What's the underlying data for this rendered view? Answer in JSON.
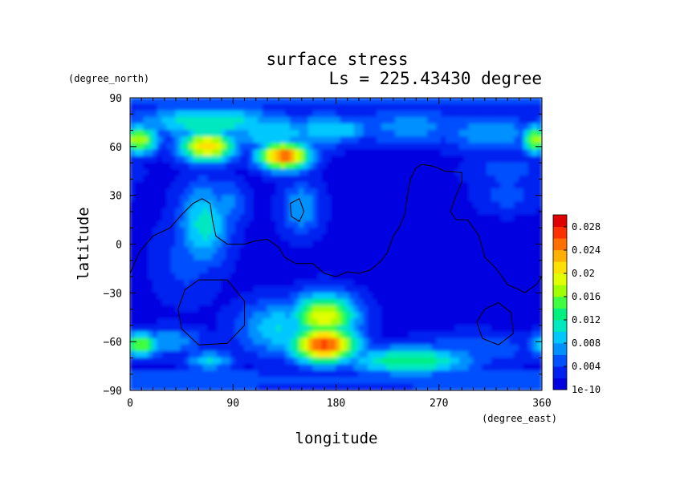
{
  "chart_data": {
    "type": "heatmap",
    "title": "surface stress",
    "subtitle": "Ls = 225.43430 degree",
    "xlabel": "longitude",
    "ylabel": "latitude",
    "xunit": "(degree_east)",
    "yunit": "(degree_north)",
    "xlim": [
      0,
      360
    ],
    "ylim": [
      -90,
      90
    ],
    "xticks": [
      "0",
      "90",
      "180",
      "270",
      "360"
    ],
    "yticks": [
      "90",
      "60",
      "30",
      "0",
      "−30",
      "−60",
      "−90"
    ],
    "colorbar": {
      "labels": [
        "0.028",
        "0.024",
        "0.02",
        "0.016",
        "0.012",
        "0.008",
        "0.004",
        "1e-10"
      ],
      "range": [
        0,
        0.03
      ],
      "colors": [
        "#0000e0",
        "#0020f0",
        "#0050ff",
        "#0090ff",
        "#00c8ff",
        "#00e8c0",
        "#00f080",
        "#40ff40",
        "#a0ff00",
        "#e0ff00",
        "#ffe000",
        "#ffb000",
        "#ff7000",
        "#ff3000",
        "#e00000"
      ]
    },
    "blobs": [
      {
        "lon": 0,
        "lat": 88,
        "value": 0.0045,
        "sx": 400,
        "sy": 4
      },
      {
        "lon": 70,
        "lat": 75,
        "value": 0.012,
        "sx": 45,
        "sy": 7
      },
      {
        "lon": 125,
        "lat": 68,
        "value": 0.01,
        "sx": 30,
        "sy": 8
      },
      {
        "lon": 170,
        "lat": 70,
        "value": 0.01,
        "sx": 20,
        "sy": 7
      },
      {
        "lon": 245,
        "lat": 72,
        "value": 0.007,
        "sx": 40,
        "sy": 8
      },
      {
        "lon": 315,
        "lat": 68,
        "value": 0.008,
        "sx": 30,
        "sy": 8
      },
      {
        "lon": 8,
        "lat": 64,
        "value": 0.018,
        "sx": 12,
        "sy": 6
      },
      {
        "lon": 355,
        "lat": 64,
        "value": 0.018,
        "sx": 8,
        "sy": 6
      },
      {
        "lon": 68,
        "lat": 60,
        "value": 0.022,
        "sx": 17,
        "sy": 7
      },
      {
        "lon": 135,
        "lat": 54,
        "value": 0.026,
        "sx": 16,
        "sy": 6
      },
      {
        "lon": 190,
        "lat": 70,
        "value": 0.01,
        "sx": 12,
        "sy": 5
      },
      {
        "lon": 65,
        "lat": 12,
        "value": 0.011,
        "sx": 16,
        "sy": 18
      },
      {
        "lon": 85,
        "lat": 25,
        "value": 0.007,
        "sx": 12,
        "sy": 10
      },
      {
        "lon": 150,
        "lat": 22,
        "value": 0.008,
        "sx": 12,
        "sy": 12
      },
      {
        "lon": 50,
        "lat": -10,
        "value": 0.005,
        "sx": 20,
        "sy": 18
      },
      {
        "lon": 330,
        "lat": 45,
        "value": 0.005,
        "sx": 25,
        "sy": 8
      },
      {
        "lon": 330,
        "lat": 30,
        "value": 0.005,
        "sx": 20,
        "sy": 8
      },
      {
        "lon": 170,
        "lat": -45,
        "value": 0.02,
        "sx": 20,
        "sy": 10
      },
      {
        "lon": 170,
        "lat": -62,
        "value": 0.027,
        "sx": 20,
        "sy": 8
      },
      {
        "lon": 130,
        "lat": -52,
        "value": 0.01,
        "sx": 25,
        "sy": 12
      },
      {
        "lon": 10,
        "lat": -62,
        "value": 0.016,
        "sx": 12,
        "sy": 5
      },
      {
        "lon": 35,
        "lat": -60,
        "value": 0.008,
        "sx": 20,
        "sy": 6
      },
      {
        "lon": 245,
        "lat": -72,
        "value": 0.014,
        "sx": 40,
        "sy": 6
      },
      {
        "lon": 300,
        "lat": -65,
        "value": 0.006,
        "sx": 40,
        "sy": 7
      },
      {
        "lon": 70,
        "lat": -72,
        "value": 0.01,
        "sx": 15,
        "sy": 4
      },
      {
        "lon": 0,
        "lat": -84,
        "value": 0.006,
        "sx": 400,
        "sy": 4
      }
    ],
    "contours": [
      {
        "name": "northern-continent",
        "points": [
          [
            0,
            -18
          ],
          [
            8,
            -5
          ],
          [
            20,
            5
          ],
          [
            35,
            10
          ],
          [
            45,
            18
          ],
          [
            55,
            25
          ],
          [
            63,
            28
          ],
          [
            70,
            25
          ],
          [
            72,
            15
          ],
          [
            75,
            5
          ],
          [
            85,
            0
          ],
          [
            100,
            0
          ],
          [
            110,
            2
          ],
          [
            120,
            3
          ],
          [
            130,
            -2
          ],
          [
            135,
            -8
          ],
          [
            145,
            -12
          ],
          [
            160,
            -12
          ],
          [
            170,
            -18
          ],
          [
            180,
            -20
          ],
          [
            190,
            -17
          ],
          [
            200,
            -18
          ],
          [
            210,
            -16
          ],
          [
            220,
            -10
          ],
          [
            225,
            -5
          ],
          [
            230,
            5
          ],
          [
            235,
            10
          ],
          [
            240,
            18
          ],
          [
            242,
            28
          ],
          [
            245,
            40
          ],
          [
            250,
            47
          ],
          [
            255,
            49
          ],
          [
            265,
            48
          ],
          [
            275,
            45
          ],
          [
            290,
            44
          ],
          [
            290,
            38
          ],
          [
            285,
            30
          ],
          [
            280,
            20
          ],
          [
            285,
            15
          ],
          [
            295,
            15
          ],
          [
            300,
            10
          ],
          [
            305,
            5
          ],
          [
            310,
            -8
          ],
          [
            320,
            -15
          ],
          [
            330,
            -25
          ],
          [
            340,
            -28
          ],
          [
            345,
            -30
          ],
          [
            355,
            -25
          ],
          [
            360,
            -20
          ]
        ]
      },
      {
        "name": "small-island",
        "points": [
          [
            140,
            25
          ],
          [
            148,
            28
          ],
          [
            152,
            20
          ],
          [
            148,
            14
          ],
          [
            141,
            17
          ],
          [
            140,
            25
          ]
        ]
      },
      {
        "name": "southern-ring-west",
        "points": [
          [
            60,
            -22
          ],
          [
            85,
            -22
          ],
          [
            100,
            -35
          ],
          [
            100,
            -50
          ],
          [
            85,
            -61
          ],
          [
            60,
            -62
          ],
          [
            45,
            -52
          ],
          [
            42,
            -40
          ],
          [
            48,
            -28
          ],
          [
            60,
            -22
          ]
        ]
      },
      {
        "name": "southern-ring-east",
        "points": [
          [
            310,
            -40
          ],
          [
            322,
            -36
          ],
          [
            333,
            -42
          ],
          [
            335,
            -55
          ],
          [
            322,
            -62
          ],
          [
            308,
            -58
          ],
          [
            303,
            -48
          ],
          [
            310,
            -40
          ]
        ]
      }
    ]
  }
}
